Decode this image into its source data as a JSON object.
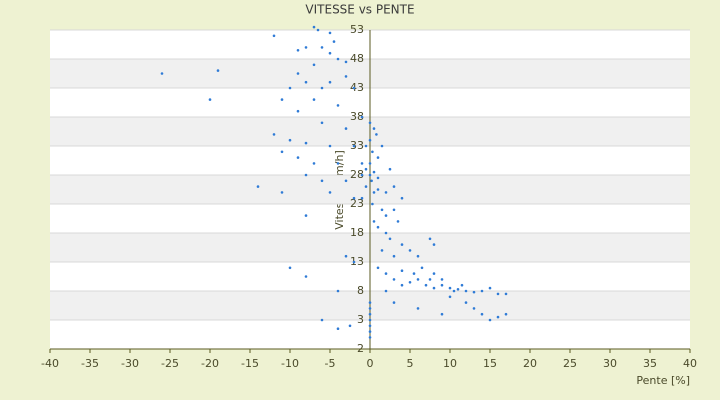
{
  "chart_data": {
    "type": "scatter",
    "title": "VITESSE vs PENTE",
    "x_label": "Pente [%]",
    "y_label": "Vitesse [km/h]",
    "color": "#2f7bd6",
    "xlim": [
      -40,
      40
    ],
    "xticks": [
      -40,
      -35,
      -30,
      -25,
      -20,
      -15,
      -10,
      -5,
      0,
      5,
      10,
      15,
      20,
      25,
      30,
      35,
      40
    ],
    "ylim": [
      -2,
      53
    ],
    "yticks": [
      -2,
      3,
      8,
      13,
      18,
      23,
      28,
      33,
      38,
      43,
      48,
      53
    ],
    "grid": true,
    "x": [
      -7,
      -6.5,
      -5,
      -12,
      -4.5,
      -6,
      -8,
      -9,
      -5,
      -4,
      -3,
      -7,
      -26,
      -19,
      -9,
      -3,
      -5,
      -8,
      -6,
      -2,
      -10,
      -20,
      -11,
      -7,
      -4,
      -9,
      -1,
      -6,
      -3,
      -12,
      -10,
      -8,
      -5,
      -2,
      -11,
      -9,
      -7,
      -4,
      -1,
      -8,
      -6,
      -3,
      -14,
      -11,
      -5,
      -2,
      -8,
      -3,
      -10,
      -8,
      -2,
      -4,
      -6,
      -4,
      -2.5,
      0,
      0.5,
      0,
      -0.5,
      0.3,
      1,
      0,
      -0.5,
      0.5,
      -1,
      0,
      1,
      0.2,
      -0.5,
      1,
      0.5,
      -1,
      0.3,
      1.5,
      2,
      0.5,
      1,
      2,
      3,
      3.5,
      2.5,
      1.5,
      4,
      3,
      5,
      6,
      7.5,
      8,
      1,
      2,
      3,
      4,
      5,
      5.5,
      6,
      7,
      7.5,
      8,
      9,
      10,
      10.5,
      11,
      12,
      13,
      14,
      15,
      16,
      17,
      12,
      13,
      14,
      15,
      16,
      17,
      9,
      6,
      3,
      2,
      4,
      6.5,
      8,
      9,
      10,
      11.5,
      2,
      3,
      4,
      2.5,
      1.5,
      0.8,
      0,
      0,
      0,
      0,
      0,
      0,
      0
    ],
    "values": [
      53.5,
      53,
      52.5,
      52,
      51,
      50,
      50,
      49.5,
      49,
      48,
      47.5,
      47,
      45.5,
      46,
      45.5,
      45,
      44,
      44,
      43,
      43,
      43,
      41,
      41,
      41,
      40,
      39,
      38,
      37,
      36,
      35,
      34,
      33.5,
      33,
      33,
      32,
      31,
      30,
      30,
      30,
      28,
      27,
      27,
      26,
      25,
      25,
      24,
      21,
      14,
      12,
      10.5,
      13,
      8,
      3,
      1.5,
      2,
      37,
      36,
      34,
      33,
      32,
      31,
      30,
      29,
      28.5,
      28,
      28,
      27.5,
      27,
      26,
      25.5,
      25,
      24,
      23,
      22,
      21,
      20,
      19,
      18,
      22,
      20,
      17,
      15,
      16,
      14,
      15,
      14,
      17,
      16,
      12,
      11,
      10,
      9,
      9.5,
      11,
      10,
      9,
      10,
      8.5,
      9,
      8.5,
      8,
      8.3,
      8,
      7.8,
      8,
      8.5,
      7.5,
      7.5,
      6,
      5,
      4,
      3,
      3.5,
      4,
      4,
      5,
      6,
      8,
      11.5,
      12,
      11,
      10,
      7,
      9,
      25,
      26,
      24,
      29,
      33,
      35,
      6,
      5,
      4,
      3,
      2,
      1,
      0
    ]
  }
}
